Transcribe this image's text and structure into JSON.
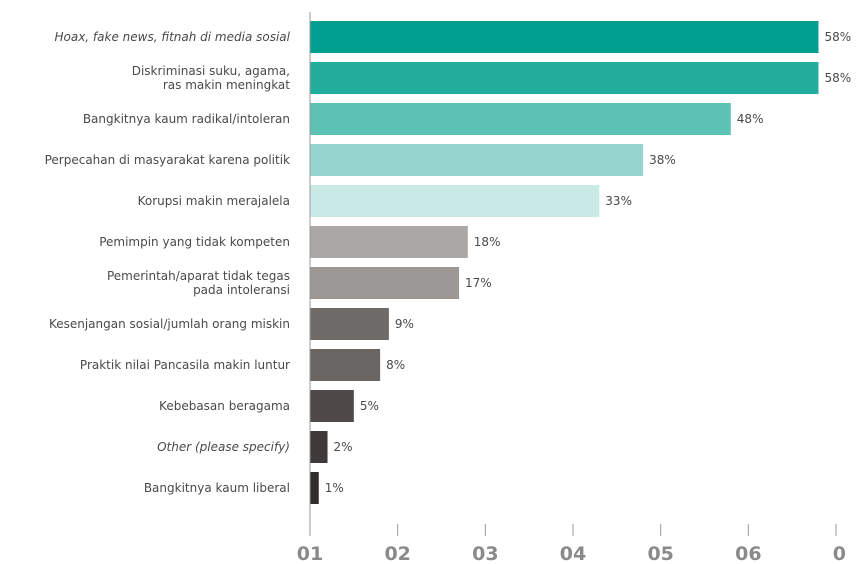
{
  "chart_data": {
    "type": "bar",
    "orientation": "horizontal",
    "title": "",
    "xlabel": "",
    "ylabel": "",
    "categories": [
      [
        "Hoax, fake news, fitnah di media sosial"
      ],
      [
        "Diskriminasi suku, agama,",
        "ras makin meningkat"
      ],
      [
        "Bangkitnya kaum radikal/intoleran"
      ],
      [
        "Perpecahan di masyarakat karena politik"
      ],
      [
        "Korupsi makin merajalela"
      ],
      [
        "Pemimpin yang tidak kompeten"
      ],
      [
        "Pemerintah/aparat tidak tegas",
        "pada intoleransi"
      ],
      [
        "Kesenjangan sosial/jumlah orang miskin"
      ],
      [
        "Praktik nilai Pancasila makin luntur"
      ],
      [
        "Kebebasan beragama"
      ],
      [
        "Other (please specify)"
      ],
      [
        "Bangkitnya kaum liberal"
      ]
    ],
    "italic_categories": [
      0,
      10
    ],
    "values": [
      58,
      58,
      48,
      38,
      33,
      18,
      17,
      9,
      8,
      5,
      2,
      1
    ],
    "value_labels": [
      "58%",
      "58%",
      "48%",
      "38%",
      "33%",
      "18%",
      "17%",
      "9%",
      "8%",
      "5%",
      "2%",
      "1%"
    ],
    "bar_colors": [
      "#009f8f",
      "#22ad9c",
      "#5bc2b5",
      "#94d5cd",
      "#c8e9e5",
      "#aaa7a5",
      "#9b9896",
      "#6f6b69",
      "#6a6664",
      "#4f4a48",
      "#3f3a38",
      "#322e2c"
    ],
    "x_ticks": [
      "01",
      "02",
      "03",
      "04",
      "05",
      "06",
      "0"
    ],
    "x_tick_values": [
      0,
      10,
      20,
      30,
      40,
      50,
      60
    ],
    "xlim": [
      0,
      60
    ],
    "grid": false,
    "legend": "none"
  }
}
